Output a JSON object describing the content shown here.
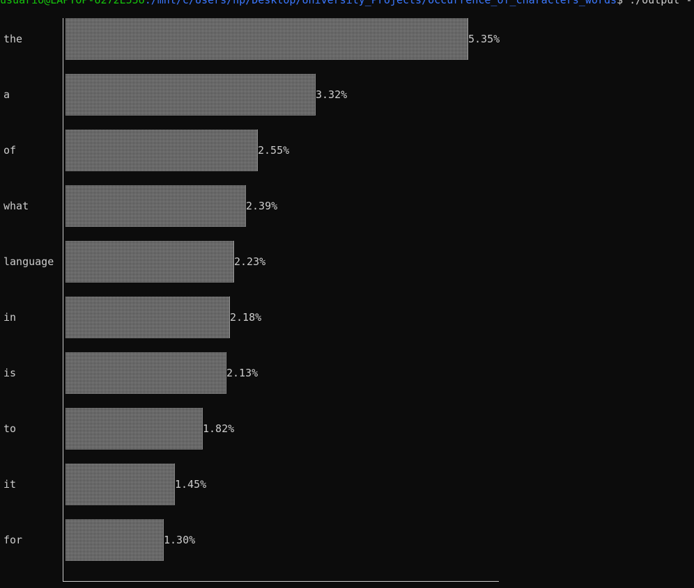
{
  "terminal": {
    "prompt_user": "usuario@LAPTOP-U272E55U",
    "prompt_path": ":/mnt/c/Users/hp/Desktop/University_Projects/Occurrence_of_characters_words",
    "prompt_command": "$ ./output -l"
  },
  "chart_data": {
    "type": "bar",
    "orientation": "horizontal",
    "categories": [
      "the",
      "a",
      "of",
      "what",
      "language",
      "in",
      "is",
      "to",
      "it",
      "for"
    ],
    "values": [
      5.35,
      3.32,
      2.55,
      2.39,
      2.23,
      2.18,
      2.13,
      1.82,
      1.45,
      1.3
    ],
    "value_labels": [
      "5.35%",
      "3.32%",
      "2.55%",
      "2.39%",
      "2.23%",
      "2.18%",
      "2.13%",
      "1.82%",
      "1.45%",
      "1.30%"
    ],
    "unit": "%",
    "xlim": [
      0,
      5.35
    ],
    "grid": false,
    "bar_color": "#3a3a3a",
    "axis_color": "#cccccc",
    "text_color": "#cccccc"
  }
}
